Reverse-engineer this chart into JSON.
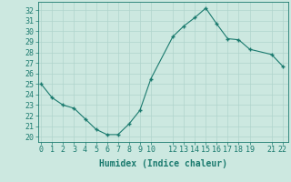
{
  "x": [
    0,
    1,
    2,
    3,
    4,
    5,
    6,
    7,
    8,
    9,
    10,
    12,
    13,
    14,
    15,
    16,
    17,
    18,
    19,
    21,
    22
  ],
  "y": [
    25.0,
    23.7,
    23.0,
    22.7,
    21.7,
    20.7,
    20.2,
    20.2,
    21.2,
    22.5,
    25.5,
    29.5,
    30.5,
    31.3,
    32.2,
    30.7,
    29.3,
    29.2,
    28.3,
    27.8,
    26.7
  ],
  "xticks": [
    0,
    1,
    2,
    3,
    4,
    5,
    6,
    7,
    8,
    9,
    10,
    12,
    13,
    14,
    15,
    16,
    17,
    18,
    19,
    21,
    22
  ],
  "yticks": [
    20,
    21,
    22,
    23,
    24,
    25,
    26,
    27,
    28,
    29,
    30,
    31,
    32
  ],
  "ylim": [
    19.5,
    32.8
  ],
  "xlim": [
    -0.3,
    22.5
  ],
  "xlabel": "Humidex (Indice chaleur)",
  "line_color": "#1a7a6e",
  "marker_color": "#1a7a6e",
  "bg_color": "#cce8e0",
  "grid_color": "#b0d4cc",
  "xlabel_fontsize": 7,
  "tick_fontsize": 6
}
